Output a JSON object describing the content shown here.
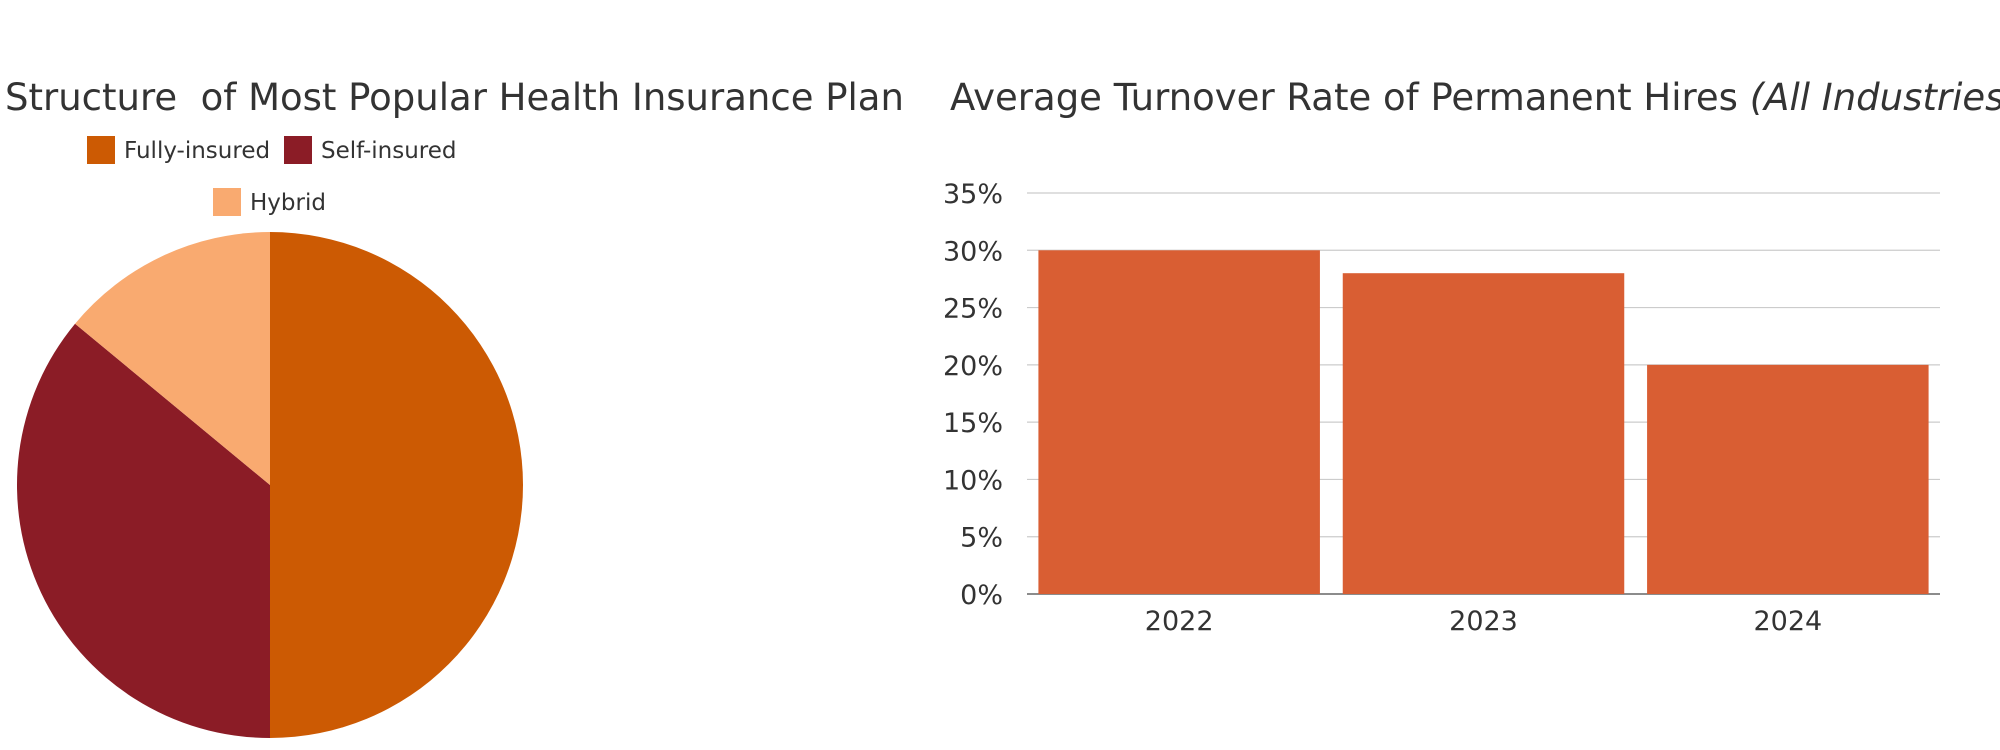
{
  "chart_data": [
    {
      "type": "pie",
      "title": "Structure  of Most Popular Health Insurance Plan",
      "legend_position": "top",
      "slices": [
        {
          "label": "Fully-insured",
          "value": 50,
          "color": "#cc5a03"
        },
        {
          "label": "Self-insured",
          "value": 36,
          "color": "#8b1c26"
        },
        {
          "label": "Hybrid",
          "value": 14,
          "color": "#f9aa70"
        }
      ]
    },
    {
      "type": "bar",
      "title": "Average Turnover Rate of Permanent Hires ",
      "title_emphasis": "(All Industries)",
      "categories": [
        "2022",
        "2023",
        "2024"
      ],
      "values": [
        30,
        28,
        20
      ],
      "ylim": [
        0,
        35
      ],
      "yticks": [
        0,
        5,
        10,
        15,
        20,
        25,
        30,
        35
      ],
      "ytick_suffix": "%",
      "xlabel": "",
      "ylabel": "",
      "grid": true,
      "bar_color": "#d95e33",
      "grid_color": "#cccccc",
      "axis_color": "#666666"
    }
  ]
}
